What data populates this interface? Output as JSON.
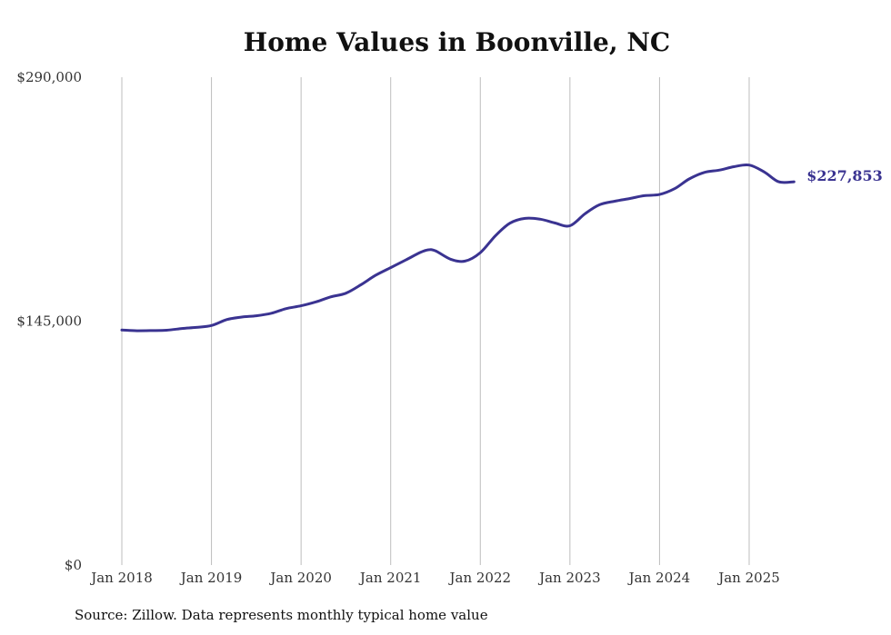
{
  "chart_data": {
    "type": "line",
    "title": "Home Values in Boonville, NC",
    "xlabel": "",
    "ylabel": "",
    "ylim": [
      0,
      290000
    ],
    "y_ticks": [
      {
        "value": 0,
        "label": "$0"
      },
      {
        "value": 145000,
        "label": "$145,000"
      },
      {
        "value": 290000,
        "label": "$290,000"
      }
    ],
    "x_ticks": [
      {
        "value": 2018.0,
        "label": "Jan 2018"
      },
      {
        "value": 2019.0,
        "label": "Jan 2019"
      },
      {
        "value": 2020.0,
        "label": "Jan 2020"
      },
      {
        "value": 2021.0,
        "label": "Jan 2021"
      },
      {
        "value": 2022.0,
        "label": "Jan 2022"
      },
      {
        "value": 2023.0,
        "label": "Jan 2023"
      },
      {
        "value": 2024.0,
        "label": "Jan 2024"
      },
      {
        "value": 2025.0,
        "label": "Jan 2025"
      }
    ],
    "xlim": [
      2018.0,
      2025.5
    ],
    "grid": {
      "vertical": true,
      "horizontal": false
    },
    "series": [
      {
        "color": "#3a3391",
        "end_label": "$227,853",
        "points": [
          [
            2018.0,
            139700
          ],
          [
            2018.17,
            139300
          ],
          [
            2018.33,
            139400
          ],
          [
            2018.5,
            139600
          ],
          [
            2018.67,
            140600
          ],
          [
            2018.83,
            141300
          ],
          [
            2019.0,
            142400
          ],
          [
            2019.17,
            145900
          ],
          [
            2019.33,
            147400
          ],
          [
            2019.5,
            148200
          ],
          [
            2019.67,
            149700
          ],
          [
            2019.83,
            152400
          ],
          [
            2020.0,
            154100
          ],
          [
            2020.17,
            156500
          ],
          [
            2020.33,
            159400
          ],
          [
            2020.5,
            161600
          ],
          [
            2020.67,
            166700
          ],
          [
            2020.83,
            172200
          ],
          [
            2021.0,
            176800
          ],
          [
            2021.17,
            181400
          ],
          [
            2021.33,
            185800
          ],
          [
            2021.42,
            187400
          ],
          [
            2021.5,
            186800
          ],
          [
            2021.67,
            181800
          ],
          [
            2021.83,
            180700
          ],
          [
            2022.0,
            185700
          ],
          [
            2022.17,
            195800
          ],
          [
            2022.33,
            203200
          ],
          [
            2022.5,
            206100
          ],
          [
            2022.67,
            205600
          ],
          [
            2022.83,
            203400
          ],
          [
            2023.0,
            201700
          ],
          [
            2023.17,
            208900
          ],
          [
            2023.33,
            214200
          ],
          [
            2023.5,
            216300
          ],
          [
            2023.67,
            217900
          ],
          [
            2023.83,
            219600
          ],
          [
            2024.0,
            220300
          ],
          [
            2024.17,
            223800
          ],
          [
            2024.33,
            229500
          ],
          [
            2024.5,
            233400
          ],
          [
            2024.67,
            234800
          ],
          [
            2024.83,
            236800
          ],
          [
            2025.0,
            237800
          ],
          [
            2025.17,
            233600
          ],
          [
            2025.33,
            227853
          ],
          [
            2025.5,
            227853
          ]
        ]
      }
    ]
  },
  "footer": {
    "source": "Source: Zillow. Data represents monthly typical home value"
  }
}
